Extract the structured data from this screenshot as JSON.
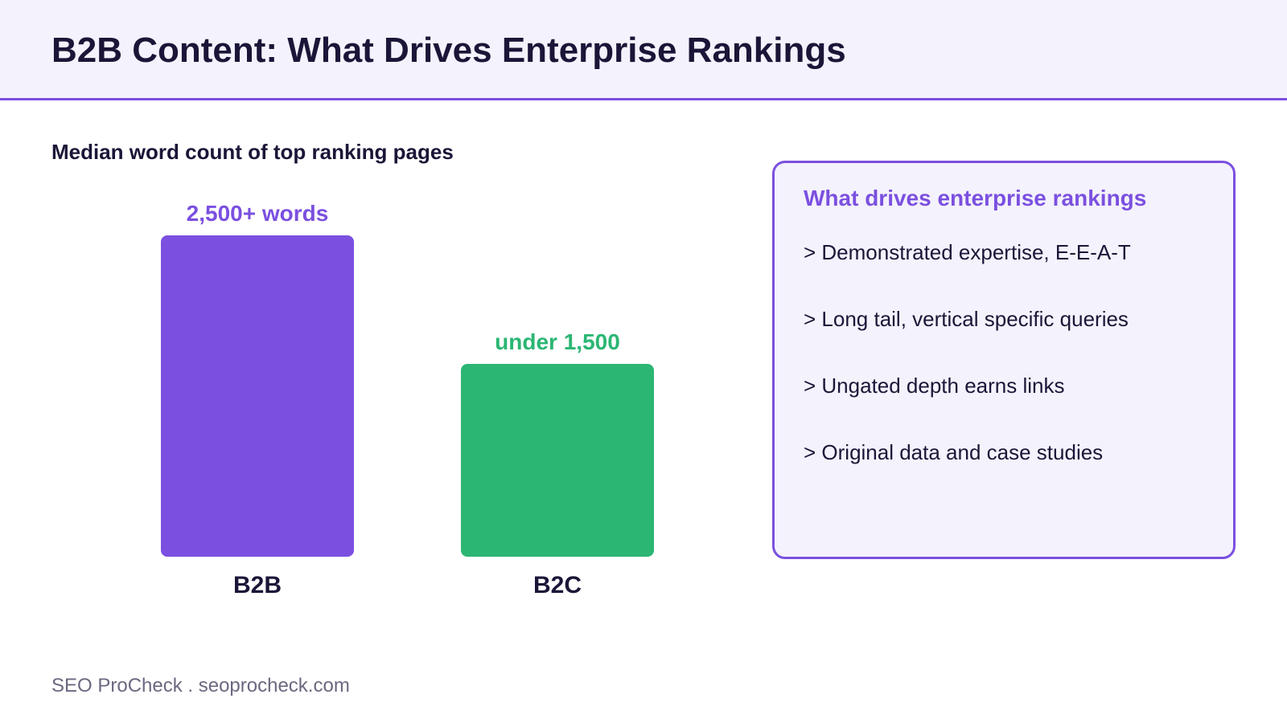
{
  "header": {
    "title": "B2B Content: What Drives Enterprise Rankings"
  },
  "colors": {
    "accent": "#7b50e0",
    "b2b_bar": "#7b50e0",
    "b2c_bar": "#2bb673",
    "text": "#1b1638",
    "panel_bg": "#f4f2fc",
    "footer_text": "#6b6880"
  },
  "chart_data": {
    "type": "bar",
    "title": "Median word count of top ranking pages",
    "xlabel": "",
    "ylabel": "",
    "grid": false,
    "ylim": [
      0,
      2500
    ],
    "categories": [
      "B2B",
      "B2C"
    ],
    "values": [
      2500,
      1500
    ],
    "data_labels": [
      "2,500+ words",
      "under 1,500"
    ],
    "colors": [
      "#7b50e0",
      "#2bb673"
    ]
  },
  "callout": {
    "title": "What drives enterprise rankings",
    "items": [
      "> Demonstrated expertise, E-E-A-T",
      "> Long tail, vertical specific queries",
      "> Ungated depth earns links",
      "> Original data and case studies"
    ]
  },
  "footer": {
    "text": "SEO ProCheck . seoprocheck.com"
  }
}
